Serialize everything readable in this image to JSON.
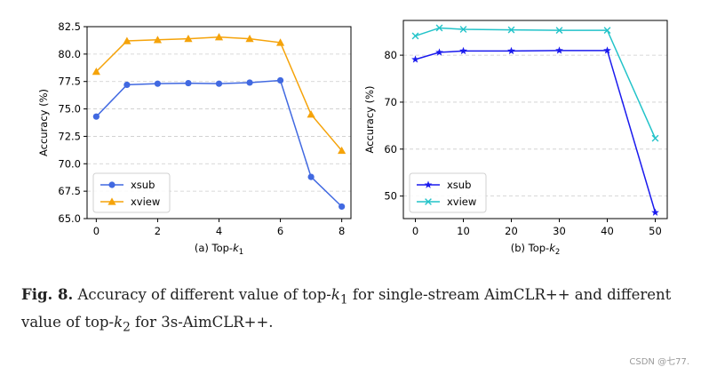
{
  "chart_data": [
    {
      "type": "line",
      "id": "a",
      "x": [
        0,
        1,
        2,
        3,
        4,
        5,
        6,
        7,
        8
      ],
      "series": [
        {
          "name": "xsub",
          "color": "#4169e1",
          "marker": "circle",
          "values": [
            74.3,
            77.2,
            77.3,
            77.35,
            77.3,
            77.4,
            77.6,
            68.8,
            66.1
          ]
        },
        {
          "name": "xview",
          "color": "#f5a30a",
          "marker": "triangle",
          "values": [
            78.4,
            81.2,
            81.3,
            81.4,
            81.55,
            81.4,
            81.05,
            74.5,
            71.2
          ]
        }
      ],
      "xlim": [
        -0.3,
        8.3
      ],
      "ylim": [
        65.0,
        82.5
      ],
      "xticks": [
        "0",
        "2",
        "4",
        "6",
        "8"
      ],
      "xtick_values": [
        0,
        2,
        4,
        6,
        8
      ],
      "yticks": [
        "65.0",
        "67.5",
        "70.0",
        "72.5",
        "75.0",
        "77.5",
        "80.0",
        "82.5"
      ],
      "ytick_values": [
        65.0,
        67.5,
        70.0,
        72.5,
        75.0,
        77.5,
        80.0,
        82.5
      ],
      "ylabel": "Accuracy (%)",
      "xlabel_prefix": "(a) Top-",
      "xlabel_var": "k",
      "xlabel_sub": "1",
      "grid": "y-dashed",
      "legend": "lower-left"
    },
    {
      "type": "line",
      "id": "b",
      "x": [
        0,
        5,
        10,
        20,
        30,
        40,
        50
      ],
      "series": [
        {
          "name": "xsub",
          "color": "#1a1aee",
          "marker": "star",
          "values": [
            79.1,
            80.6,
            80.9,
            80.9,
            81.0,
            81.0,
            46.5
          ]
        },
        {
          "name": "xview",
          "color": "#22c3c9",
          "marker": "x",
          "values": [
            84.1,
            85.8,
            85.5,
            85.4,
            85.3,
            85.3,
            62.3
          ]
        }
      ],
      "xlim": [
        -2.5,
        52.5
      ],
      "ylim": [
        45.2,
        87.4
      ],
      "xticks": [
        "0",
        "10",
        "20",
        "30",
        "40",
        "50"
      ],
      "xtick_values": [
        0,
        10,
        20,
        30,
        40,
        50
      ],
      "yticks": [
        "50",
        "60",
        "70",
        "80"
      ],
      "ytick_values": [
        50,
        60,
        70,
        80
      ],
      "ylabel": "Accuracy (%)",
      "xlabel_prefix": "(b) Top-",
      "xlabel_var": "k",
      "xlabel_sub": "2",
      "grid": "y-dashed",
      "legend": "lower-left"
    }
  ],
  "caption": {
    "label": "Fig. 8.",
    "text_1": "Accuracy of different value of top-",
    "k": "k",
    "sub_1": "1",
    "text_2": " for single-stream AimCLR++ and different",
    "text_3": "value of top-",
    "sub_2": "2",
    "text_4": " for 3s-AimCLR++."
  },
  "watermark": "CSDN @七77."
}
